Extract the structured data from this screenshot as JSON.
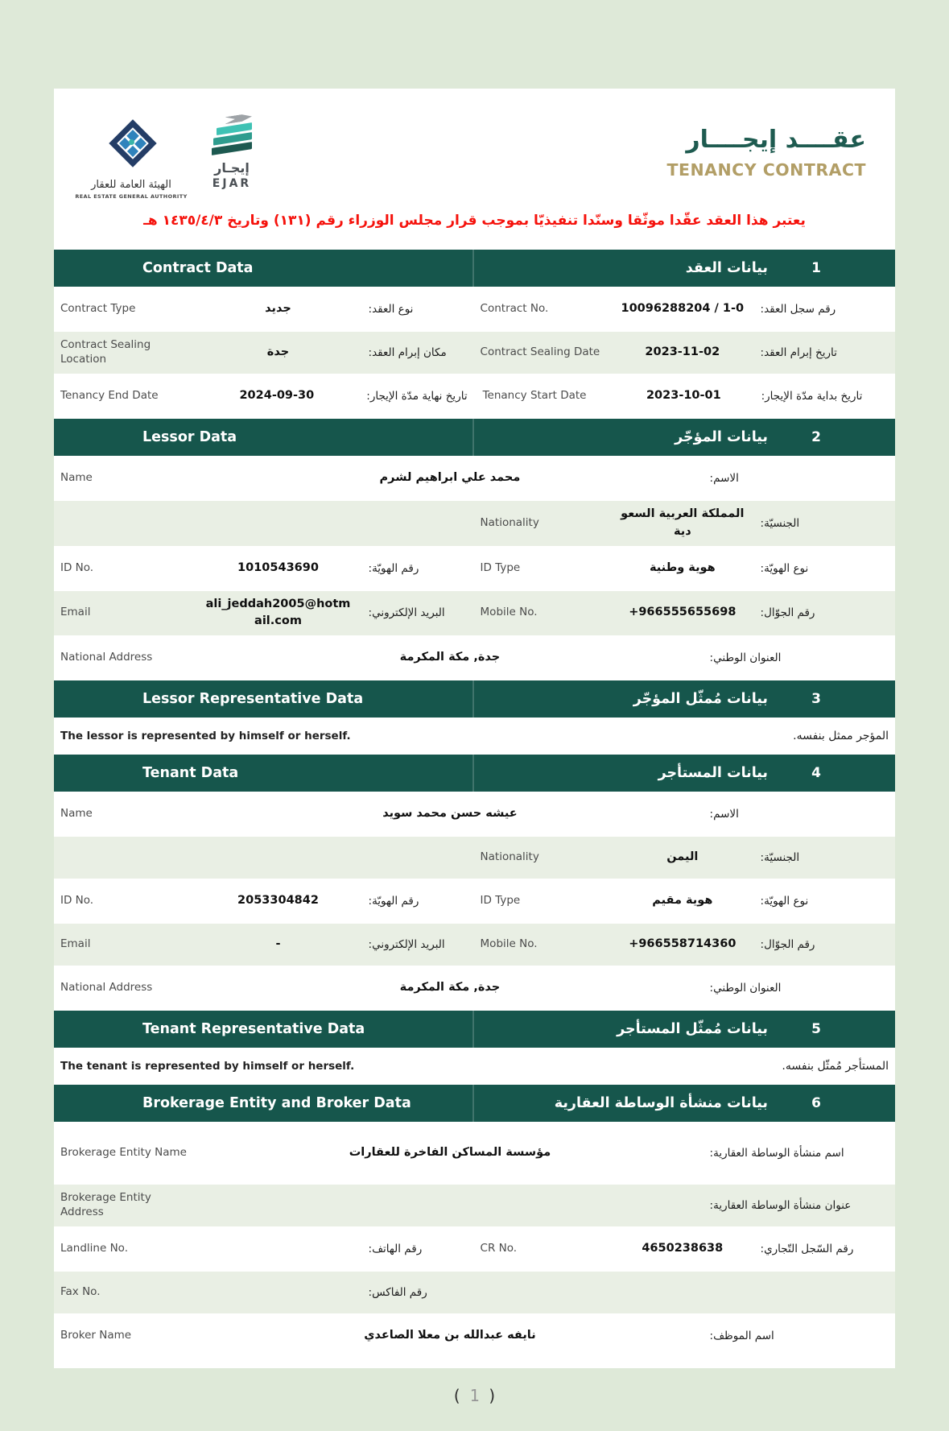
{
  "colors": {
    "page_background": "#dee9d8",
    "section_header": "#16564c",
    "shaded_row": "#e9efe4",
    "title_teal": "#1e5b50",
    "title_gold": "#b29e66",
    "notice_red": "#f5120c"
  },
  "header": {
    "rega": {
      "name_ar": "الهيئة العامة للعقار",
      "name_en": "REAL ESTATE GENERAL AUTHORITY"
    },
    "ejar": {
      "name_ar": "إيجـار",
      "name_en": "EJAR"
    },
    "title_ar": "عقــــد إيجــــار",
    "title_en": "TENANCY CONTRACT",
    "notice": "يعتبر هذا العقد عقّدا موثّقا وسنّدا تنفيذيّا بموجب قرار مجلس الوزراء رقم (١٣١) وتاريخ ١٤٣٥/٤/٣ هـ"
  },
  "sections": [
    {
      "number": "1",
      "title_ar": "بيانات العقد",
      "title_en": "Contract Data",
      "rows": [
        {
          "left": {
            "en": "Contract Type",
            "value": "جديد",
            "ar": "نوع العقد:"
          },
          "right": {
            "en": "Contract No.",
            "value": "10096288204 / 1-0",
            "ar": "رقم سجل العقد:"
          }
        },
        {
          "left": {
            "en": "Contract Sealing Location",
            "value": "جدة",
            "ar": "مكان إبرام العقد:"
          },
          "right": {
            "en": "Contract Sealing Date",
            "value": "2023-11-02",
            "ar": "تاريخ إبرام العقد:"
          }
        },
        {
          "left": {
            "en": "Tenancy End Date",
            "value": "2024-09-30",
            "ar": "تاريخ نهاية مدّة الإيجار:"
          },
          "right": {
            "en": "Tenancy Start Date",
            "value": "2023-10-01",
            "ar": "تاريخ بداية مدّة الإيجار:"
          }
        }
      ]
    },
    {
      "number": "2",
      "title_ar": "بيانات المؤجّر",
      "title_en": "Lessor Data",
      "rows": [
        {
          "en": "Name",
          "value": "محمد علي ابراهيم لشرم",
          "ar": "الاسم:"
        },
        {
          "left": {
            "en": "",
            "value": "",
            "ar": ""
          },
          "right": {
            "en": "Nationality",
            "value": "المملكة العربية السعودية",
            "ar": "الجنسيّة:"
          }
        },
        {
          "left": {
            "en": "ID No.",
            "value": "1010543690",
            "ar": "رقم الهويّة:"
          },
          "right": {
            "en": "ID Type",
            "value": "هوية وطنية",
            "ar": "نوع الهويّة:"
          }
        },
        {
          "left": {
            "en": "Email",
            "value": "ali_jeddah2005@hotmail.com",
            "ar": "البريد الإلكتروني:"
          },
          "right": {
            "en": "Mobile No.",
            "value": "+966555655698",
            "ar": "رقم الجوّال:"
          }
        },
        {
          "en": "National Address",
          "value": "جدة, مكة المكرمة",
          "ar": "العنوان الوطني:"
        }
      ]
    },
    {
      "number": "3",
      "title_ar": "بيانات مُمثّل المؤجّر",
      "title_en": "Lessor Representative Data",
      "note": {
        "en": "The lessor is represented by himself or herself.",
        "ar": "المؤجر ممثل بنفسه."
      }
    },
    {
      "number": "4",
      "title_ar": "بيانات المستأجر",
      "title_en": "Tenant Data",
      "rows": [
        {
          "en": "Name",
          "value": "عيشه حسن محمد سويد",
          "ar": "الاسم:"
        },
        {
          "left": {
            "en": "",
            "value": "",
            "ar": ""
          },
          "right": {
            "en": "Nationality",
            "value": "اليمن",
            "ar": "الجنسيّة:"
          }
        },
        {
          "left": {
            "en": "ID No.",
            "value": "2053304842",
            "ar": "رقم الهويّة:"
          },
          "right": {
            "en": "ID Type",
            "value": "هوية مقيم",
            "ar": "نوع الهويّة:"
          }
        },
        {
          "left": {
            "en": "Email",
            "value": "-",
            "ar": "البريد الإلكتروني:"
          },
          "right": {
            "en": "Mobile No.",
            "value": "+966558714360",
            "ar": "رقم الجوّال:"
          }
        },
        {
          "en": "National Address",
          "value": "جدة, مكة المكرمة",
          "ar": "العنوان الوطني:"
        }
      ]
    },
    {
      "number": "5",
      "title_ar": "بيانات مُمثّل المستأجر",
      "title_en": "Tenant Representative Data",
      "note": {
        "en": "The tenant is represented by himself or herself.",
        "ar": "المستأجر مُمثّل بنفسه."
      }
    },
    {
      "number": "6",
      "title_ar": "بيانات منشأة الوساطة العقارية",
      "title_en": "Brokerage Entity and Broker Data",
      "rows": [
        {
          "en": "Brokerage Entity Name",
          "value": "مؤسسة المساكن الفاخرة للعقارات",
          "ar": "اسم منشأة الوساطة العقارية:"
        },
        {
          "en": "Brokerage Entity Address",
          "value": "",
          "ar": "عنوان منشأة الوساطة العقارية:"
        },
        {
          "left": {
            "en": "Landline No.",
            "value": "",
            "ar": "رقم الهاتف:"
          },
          "right": {
            "en": "CR No.",
            "value": "4650238638",
            "ar": "رقم السّجل التّجاري:"
          }
        },
        {
          "left": {
            "en": "Fax No.",
            "value": "",
            "ar": "رقم الفاكس:"
          },
          "right": {
            "en": "",
            "value": "",
            "ar": ""
          }
        },
        {
          "en": "Broker Name",
          "value": "نايفه عبدالله بن معلا الصاعدي",
          "ar": "اسم الموظف:"
        }
      ]
    }
  ],
  "footer": {
    "open": "(",
    "page": "1",
    "close": ")"
  }
}
